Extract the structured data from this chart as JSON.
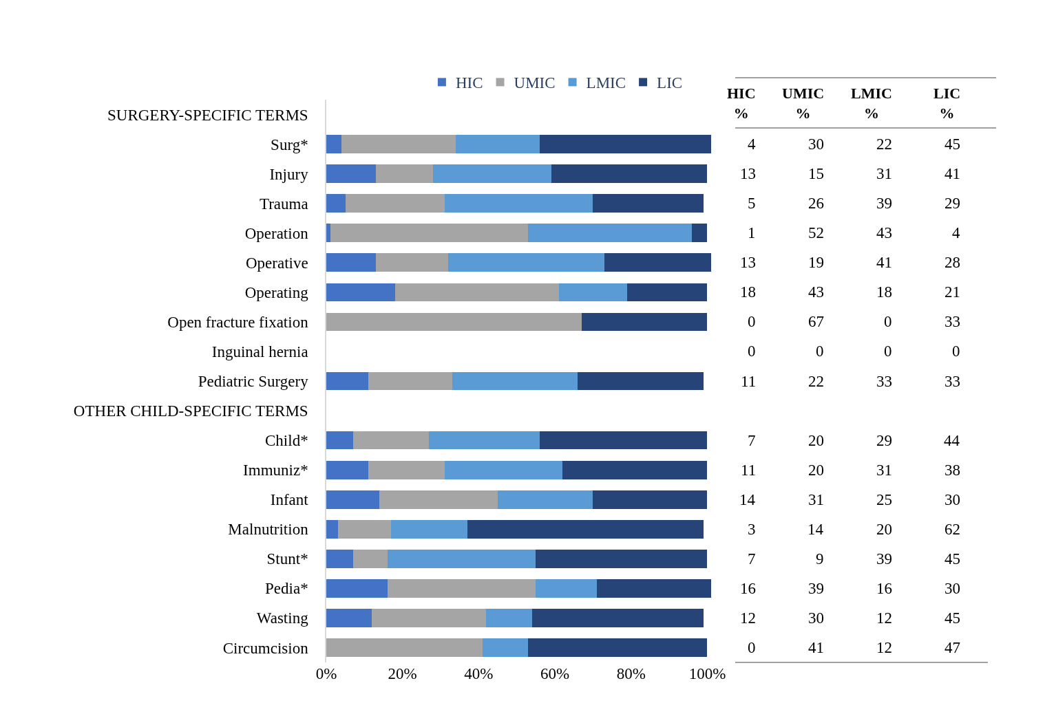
{
  "chart_data": {
    "type": "bar",
    "orientation": "horizontal",
    "stacked": true,
    "data_labels": true,
    "legend": "top",
    "categories": [
      "SURGERY-SPECIFIC TERMS",
      "Surg*",
      "Injury",
      "Trauma",
      "Operation",
      "Operative",
      "Operating",
      "Open fracture fixation",
      "Inguinal hernia",
      "Pediatric Surgery",
      "OTHER CHILD-SPECIFIC TERMS",
      "Child*",
      "Immuniz*",
      "Infant",
      "Malnutrition",
      "Stunt*",
      "Pedia*",
      "Wasting",
      "Circumcision"
    ],
    "series": [
      {
        "name": "HIC",
        "color": "#4472c4",
        "values": [
          null,
          4,
          13,
          5,
          1,
          13,
          18,
          0,
          0,
          11,
          null,
          7,
          11,
          14,
          3,
          7,
          16,
          12,
          0
        ]
      },
      {
        "name": "UMIC",
        "color": "#a5a5a5",
        "values": [
          null,
          30,
          15,
          26,
          52,
          19,
          43,
          67,
          0,
          22,
          null,
          20,
          20,
          31,
          14,
          9,
          39,
          30,
          41
        ]
      },
      {
        "name": "LMIC",
        "color": "#5b9bd5",
        "values": [
          null,
          22,
          31,
          39,
          43,
          41,
          18,
          0,
          0,
          33,
          null,
          29,
          31,
          25,
          20,
          39,
          16,
          12,
          12
        ]
      },
      {
        "name": "LIC",
        "color": "#264478",
        "values": [
          null,
          45,
          41,
          29,
          4,
          28,
          21,
          33,
          0,
          33,
          null,
          44,
          38,
          30,
          62,
          45,
          30,
          45,
          47
        ]
      }
    ],
    "xlim": [
      0,
      101
    ],
    "xticks": [
      {
        "value": 0,
        "label": "0%"
      },
      {
        "value": 20,
        "label": "20%"
      },
      {
        "value": 40,
        "label": "40%"
      },
      {
        "value": 60,
        "label": "60%"
      },
      {
        "value": 80,
        "label": "80%"
      },
      {
        "value": 100,
        "label": "100%"
      }
    ],
    "annotations": [
      "HIC %",
      "UMIC %",
      "LMIC %",
      "LIC %"
    ]
  }
}
